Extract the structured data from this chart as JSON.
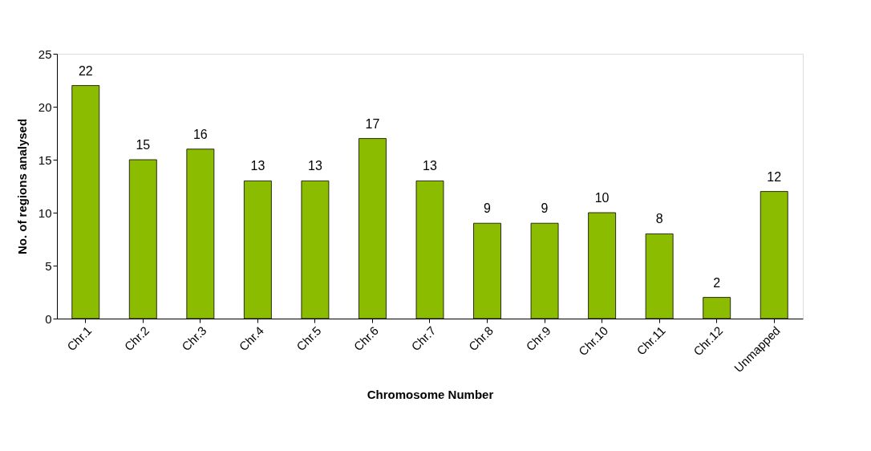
{
  "chart_data": {
    "type": "bar",
    "xlabel": "Chromosome Number",
    "ylabel": "No. of regions analysed",
    "categories": [
      "Chr.1",
      "Chr.2",
      "Chr.3",
      "Chr.4",
      "Chr.5",
      "Chr.6",
      "Chr.7",
      "Chr.8",
      "Chr.9",
      "Chr.10",
      "Chr.11",
      "Chr.12",
      "Unmapped"
    ],
    "values": [
      22,
      15,
      16,
      13,
      13,
      17,
      13,
      9,
      9,
      10,
      8,
      2,
      12
    ],
    "color": "#8cbc00",
    "ylim": [
      0,
      25
    ],
    "yticks": [
      0,
      5,
      10,
      15,
      20,
      25
    ],
    "grid": false,
    "data_labels": true
  }
}
